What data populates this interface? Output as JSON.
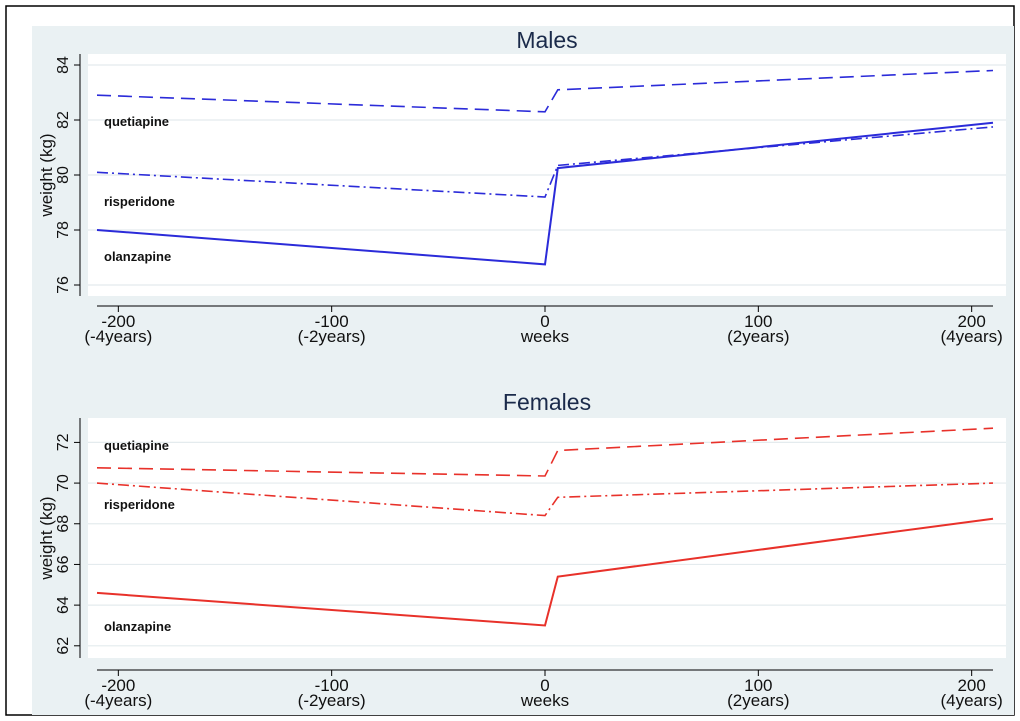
{
  "chart_data": [
    {
      "type": "line",
      "title": "Males",
      "xlabel": "weeks",
      "ylabel": "weight (kg)",
      "xlim": [
        -210,
        210
      ],
      "ylim": [
        75.6,
        84.4
      ],
      "grid": true,
      "color": "#2b2bd9",
      "x_ticks": [
        {
          "value": -200,
          "label": "-200",
          "sub": "(-4years)"
        },
        {
          "value": -100,
          "label": "-100",
          "sub": "(-2years)"
        },
        {
          "value": 0,
          "label": "0",
          "sub": "weeks"
        },
        {
          "value": 100,
          "label": "100",
          "sub": "(2years)"
        },
        {
          "value": 200,
          "label": "200",
          "sub": "(4years)"
        }
      ],
      "y_ticks": [
        76,
        78,
        80,
        82,
        84
      ],
      "series": [
        {
          "name": "quetiapine",
          "dash": "long",
          "label_y": 81.9,
          "points": [
            [
              -210,
              82.9
            ],
            [
              0,
              82.3
            ],
            [
              6,
              83.1
            ],
            [
              210,
              83.8
            ]
          ]
        },
        {
          "name": "risperidone",
          "dash": "dashdot",
          "label_y": 79.0,
          "points": [
            [
              -210,
              80.1
            ],
            [
              0,
              79.2
            ],
            [
              6,
              80.35
            ],
            [
              210,
              81.75
            ]
          ]
        },
        {
          "name": "olanzapine",
          "dash": "solid",
          "label_y": 77.0,
          "points": [
            [
              -210,
              78.0
            ],
            [
              0,
              76.75
            ],
            [
              6,
              80.25
            ],
            [
              210,
              81.9
            ]
          ]
        }
      ]
    },
    {
      "type": "line",
      "title": "Females",
      "xlabel": "weeks",
      "ylabel": "weight (kg)",
      "xlim": [
        -210,
        210
      ],
      "ylim": [
        61.4,
        73.2
      ],
      "grid": true,
      "color": "#e8312a",
      "x_ticks": [
        {
          "value": -200,
          "label": "-200",
          "sub": "(-4years)"
        },
        {
          "value": -100,
          "label": "-100",
          "sub": "(-2years)"
        },
        {
          "value": 0,
          "label": "0",
          "sub": "weeks"
        },
        {
          "value": 100,
          "label": "100",
          "sub": "(2years)"
        },
        {
          "value": 200,
          "label": "200",
          "sub": "(4years)"
        }
      ],
      "y_ticks": [
        62,
        64,
        66,
        68,
        70,
        72
      ],
      "series": [
        {
          "name": "quetiapine",
          "dash": "long",
          "label_y": 71.8,
          "points": [
            [
              -210,
              70.75
            ],
            [
              0,
              70.35
            ],
            [
              6,
              71.6
            ],
            [
              210,
              72.7
            ]
          ]
        },
        {
          "name": "risperidone",
          "dash": "dashdot",
          "label_y": 68.9,
          "points": [
            [
              -210,
              70.0
            ],
            [
              0,
              68.4
            ],
            [
              6,
              69.3
            ],
            [
              210,
              70.0
            ]
          ]
        },
        {
          "name": "olanzapine",
          "dash": "solid",
          "label_y": 62.9,
          "points": [
            [
              -210,
              64.6
            ],
            [
              0,
              63.0
            ],
            [
              6,
              65.4
            ],
            [
              210,
              68.25
            ]
          ]
        }
      ]
    }
  ]
}
